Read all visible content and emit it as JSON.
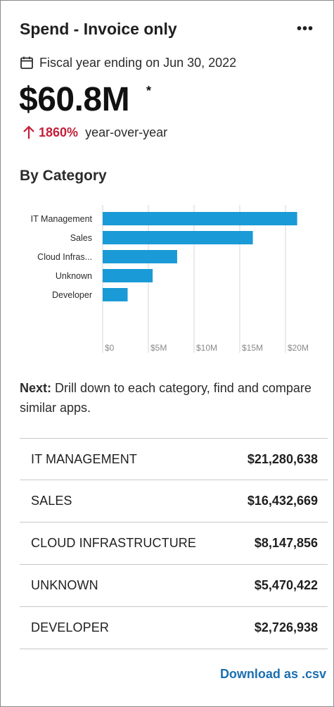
{
  "card": {
    "title": "Spend - Invoice only",
    "more_label": "•••",
    "fiscal_text": "Fiscal year ending on Jun 30, 2022",
    "big_value": "$60.8M",
    "asterisk": "*",
    "yoy_pct": "1860%",
    "yoy_label": "year-over-year",
    "section_title": "By Category",
    "next_prefix": "Next:",
    "next_text": " Drill down to each category, find and compare similar apps.",
    "download_label": "Download as .csv"
  },
  "colors": {
    "bar": "#1a9ad6",
    "accent_red": "#c41e3a",
    "link_blue": "#1a6fb0",
    "grid": "#d6d6d6"
  },
  "icons": {
    "calendar": "calendar-icon",
    "trend": "up-arrow-icon",
    "menu": "more-icon"
  },
  "chart_data": {
    "type": "bar",
    "orientation": "horizontal",
    "categories": [
      "IT Management",
      "Sales",
      "Cloud Infras...",
      "Unknown",
      "Developer"
    ],
    "values": [
      21.28,
      16.43,
      8.15,
      5.47,
      2.73
    ],
    "xlabel": "",
    "ylabel": "",
    "xticks": [
      "$0",
      "$5M",
      "$10M",
      "$15M",
      "$20M"
    ],
    "xlim": [
      0,
      22
    ],
    "grid": true
  },
  "categories_table": [
    {
      "name": "IT MANAGEMENT",
      "amount": "$21,280,638"
    },
    {
      "name": "SALES",
      "amount": "$16,432,669"
    },
    {
      "name": "CLOUD INFRASTRUCTURE",
      "amount": "$8,147,856"
    },
    {
      "name": "UNKNOWN",
      "amount": "$5,470,422"
    },
    {
      "name": "DEVELOPER",
      "amount": "$2,726,938"
    }
  ]
}
